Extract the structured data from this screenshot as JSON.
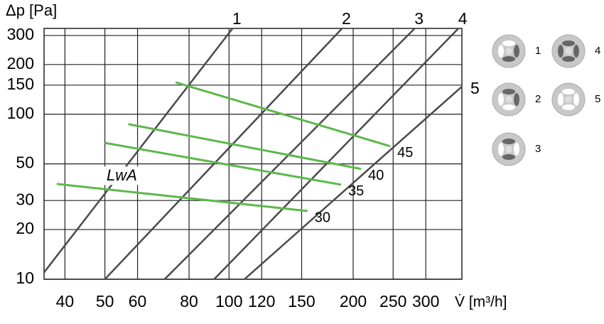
{
  "chart_data": {
    "type": "line",
    "y_label": "Δp [Pa]",
    "x_label": "V̇ [m³/h]",
    "annotation": "LwA",
    "log_x": true,
    "log_y": true,
    "grid": true,
    "xlim": [
      35.6,
      367
    ],
    "ylim": [
      10,
      331
    ],
    "xticks": [
      40,
      50,
      60,
      80,
      100,
      120,
      150,
      200,
      250,
      300
    ],
    "yticks": [
      10,
      20,
      30,
      50,
      100,
      150,
      200,
      300
    ],
    "series": [
      {
        "name": "1",
        "color": "#4a4a4a",
        "kind": "damper",
        "x": [
          35.6,
          102
        ],
        "values": [
          11,
          331
        ]
      },
      {
        "name": "2",
        "color": "#4a4a4a",
        "kind": "damper",
        "x": [
          50,
          188
        ],
        "values": [
          10,
          331
        ]
      },
      {
        "name": "3",
        "color": "#4a4a4a",
        "kind": "damper",
        "x": [
          69.8,
          282
        ],
        "values": [
          10,
          331
        ]
      },
      {
        "name": "4",
        "color": "#4a4a4a",
        "kind": "damper",
        "x": [
          92,
          360
        ],
        "values": [
          10,
          331
        ]
      },
      {
        "name": "5",
        "color": "#4a4a4a",
        "kind": "damper",
        "x": [
          109,
          367
        ],
        "values": [
          10,
          147
        ]
      },
      {
        "name": "45",
        "color": "#5cb84a",
        "kind": "sound",
        "x": [
          74.2,
          246
        ],
        "values": [
          156,
          64
        ]
      },
      {
        "name": "40",
        "color": "#5cb84a",
        "kind": "sound",
        "x": [
          57,
          209
        ],
        "values": [
          87,
          46.6
        ]
      },
      {
        "name": "35",
        "color": "#5cb84a",
        "kind": "sound",
        "x": [
          50,
          187
        ],
        "values": [
          67,
          37.4
        ]
      },
      {
        "name": "30",
        "color": "#5cb84a",
        "kind": "sound",
        "x": [
          38.2,
          155
        ],
        "values": [
          37.8,
          25.9
        ]
      }
    ]
  }
}
